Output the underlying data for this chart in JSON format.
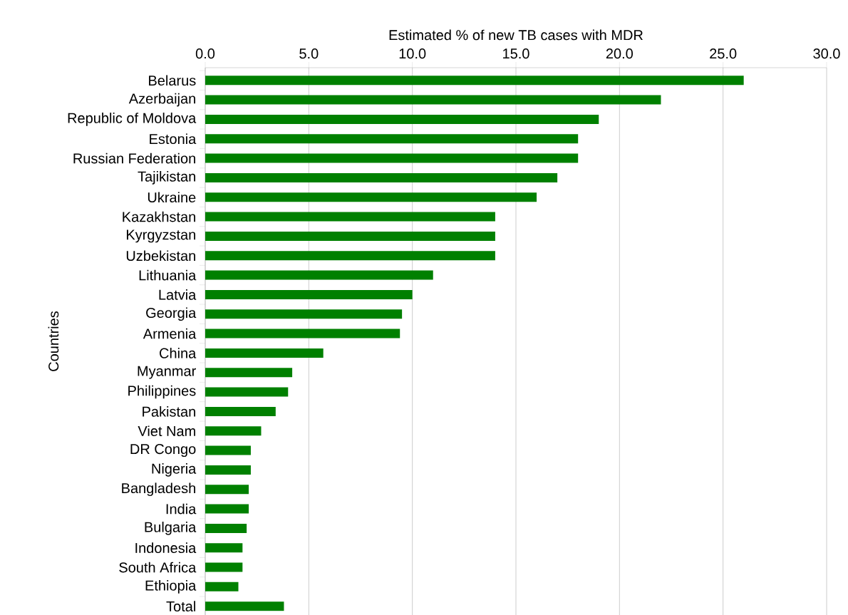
{
  "chart_data": {
    "type": "bar",
    "orientation": "horizontal",
    "xlabel": "Estimated % of new TB cases with MDR",
    "ylabel": "Countries",
    "categories": [
      "Belarus",
      "Azerbaijan",
      "Republic of Moldova",
      "Estonia",
      "Russian Federation",
      "Tajikistan",
      "Ukraine",
      "Kazakhstan",
      "Kyrgyzstan",
      "Uzbekistan",
      "Lithuania",
      "Latvia",
      "Georgia",
      "Armenia",
      "China",
      "Myanmar",
      "Philippines",
      "Pakistan",
      "Viet Nam",
      "DR Congo",
      "Nigeria",
      "Bangladesh",
      "India",
      "Bulgaria",
      "Indonesia",
      "South Africa",
      "Ethiopia",
      "Total"
    ],
    "values": [
      26.0,
      22.0,
      19.0,
      18.0,
      18.0,
      17.0,
      16.0,
      14.0,
      14.0,
      14.0,
      11.0,
      10.0,
      9.5,
      9.4,
      5.7,
      4.2,
      4.0,
      3.4,
      2.7,
      2.2,
      2.2,
      2.1,
      2.1,
      2.0,
      1.8,
      1.8,
      1.6,
      3.8
    ],
    "color": "#008000",
    "xlim": [
      0,
      30
    ],
    "xticks": [
      {
        "value": 0,
        "label": "0.0"
      },
      {
        "value": 5,
        "label": "5.0"
      },
      {
        "value": 10,
        "label": "10.0"
      },
      {
        "value": 15,
        "label": "15.0"
      },
      {
        "value": 20,
        "label": "20.0"
      },
      {
        "value": 25,
        "label": "25.0"
      },
      {
        "value": 30,
        "label": "30.0"
      }
    ],
    "grid": "x"
  }
}
